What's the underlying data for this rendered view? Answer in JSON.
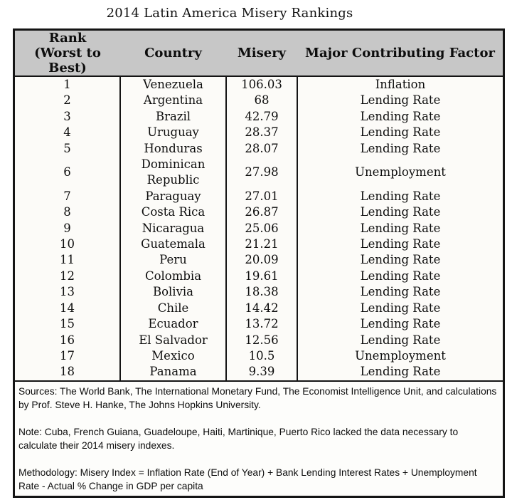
{
  "title": "2014 Latin America Misery Rankings",
  "colors": {
    "header_bg": "#c7c7c7",
    "border": "#141414",
    "body_bg": "#fcfbf8",
    "text": "#0d0d0d"
  },
  "table": {
    "header": {
      "rank": "Rank\n(Worst to Best)",
      "country": "Country",
      "misery": "Misery",
      "factor": "Major Contributing Factor"
    }
  },
  "chart_data": {
    "type": "table",
    "title": "2014 Latin America Misery Rankings",
    "columns": [
      "Rank (Worst to Best)",
      "Country",
      "Misery",
      "Major Contributing Factor"
    ],
    "fields": [
      "rank",
      "country",
      "misery",
      "factor"
    ],
    "rows": [
      {
        "rank": "1",
        "country": "Venezuela",
        "misery": "106.03",
        "factor": "Inflation"
      },
      {
        "rank": "2",
        "country": "Argentina",
        "misery": "68",
        "factor": "Lending Rate"
      },
      {
        "rank": "3",
        "country": "Brazil",
        "misery": "42.79",
        "factor": "Lending Rate"
      },
      {
        "rank": "4",
        "country": "Uruguay",
        "misery": "28.37",
        "factor": "Lending Rate"
      },
      {
        "rank": "5",
        "country": "Honduras",
        "misery": "28.07",
        "factor": "Lending Rate"
      },
      {
        "rank": "6",
        "country": "Dominican Republic",
        "misery": "27.98",
        "factor": "Unemployment"
      },
      {
        "rank": "7",
        "country": "Paraguay",
        "misery": "27.01",
        "factor": "Lending Rate"
      },
      {
        "rank": "8",
        "country": "Costa Rica",
        "misery": "26.87",
        "factor": "Lending Rate"
      },
      {
        "rank": "9",
        "country": "Nicaragua",
        "misery": "25.06",
        "factor": "Lending Rate"
      },
      {
        "rank": "10",
        "country": "Guatemala",
        "misery": "21.21",
        "factor": "Lending Rate"
      },
      {
        "rank": "11",
        "country": "Peru",
        "misery": "20.09",
        "factor": "Lending Rate"
      },
      {
        "rank": "12",
        "country": "Colombia",
        "misery": "19.61",
        "factor": "Lending Rate"
      },
      {
        "rank": "13",
        "country": "Bolivia",
        "misery": "18.38",
        "factor": "Lending Rate"
      },
      {
        "rank": "14",
        "country": "Chile",
        "misery": "14.42",
        "factor": "Lending Rate"
      },
      {
        "rank": "15",
        "country": "Ecuador",
        "misery": "13.72",
        "factor": "Lending Rate"
      },
      {
        "rank": "16",
        "country": "El Salvador",
        "misery": "12.56",
        "factor": "Lending Rate"
      },
      {
        "rank": "17",
        "country": "Mexico",
        "misery": "10.5",
        "factor": "Unemployment"
      },
      {
        "rank": "18",
        "country": "Panama",
        "misery": "9.39",
        "factor": "Lending Rate"
      }
    ]
  },
  "footer": {
    "sources": "Sources: The World Bank, The International Monetary Fund, The Economist Intelligence Unit, and calculations by Prof. Steve H. Hanke, The Johns Hopkins University.",
    "note": "Note: Cuba, French Guiana, Guadeloupe,  Haiti, Martinique, Puerto Rico lacked the data necessary to calculate their 2014 misery indexes.",
    "methodology": "Methodology: Misery Index = Inflation Rate (End of Year) + Bank Lending Interest Rates + Unemployment Rate - Actual % Change in GDP per capita"
  }
}
